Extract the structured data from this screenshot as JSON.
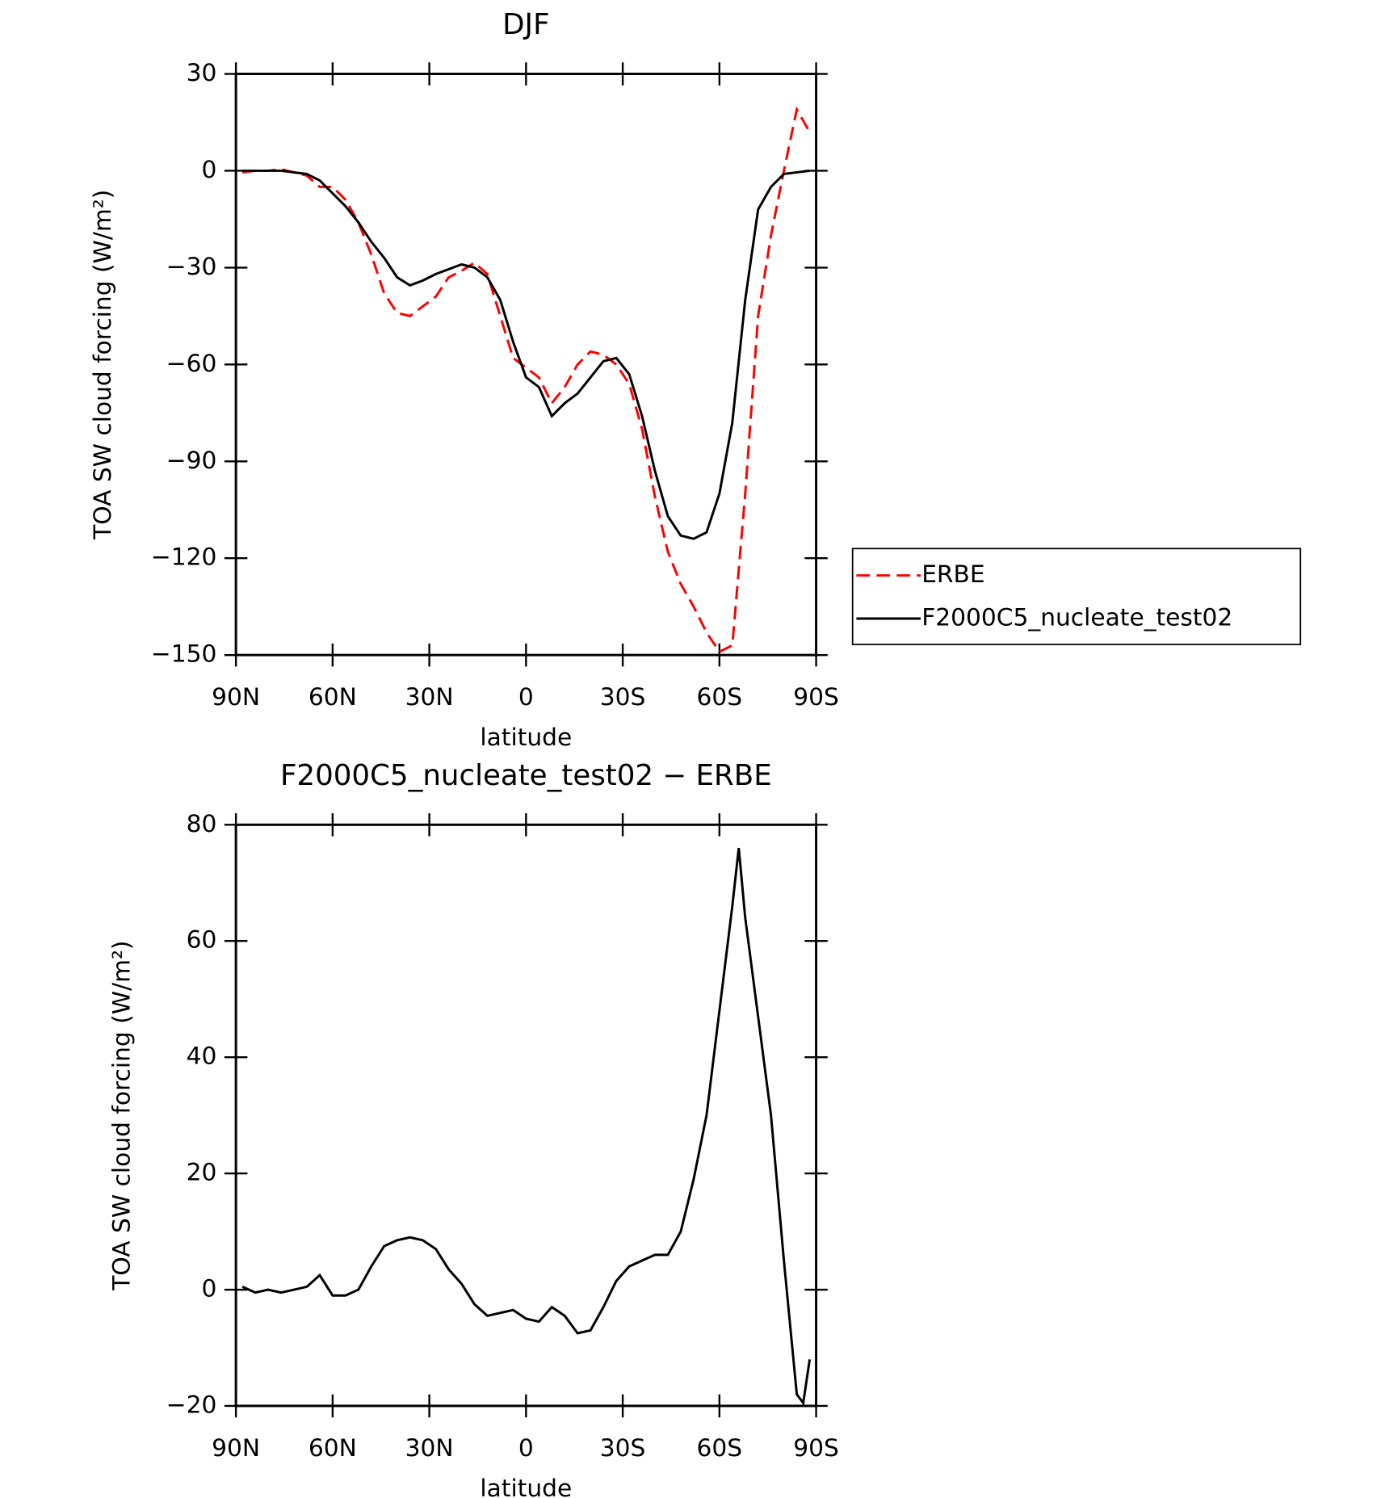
{
  "chart_data": [
    {
      "type": "line",
      "title": "DJF",
      "x_label": "latitude",
      "y_label": "TOA SW cloud forcing (W/m²)",
      "x": [
        88,
        84,
        80,
        76,
        72,
        68,
        64,
        60,
        56,
        52,
        48,
        44,
        40,
        36,
        32,
        28,
        24,
        20,
        16,
        12,
        8,
        4,
        0,
        -4,
        -8,
        -12,
        -16,
        -20,
        -24,
        -28,
        -32,
        -36,
        -40,
        -44,
        -48,
        -52,
        -56,
        -60,
        -64,
        -68,
        -72,
        -76,
        -80,
        -84,
        -88
      ],
      "series": [
        {
          "name": "ERBE",
          "color": "#ff0000",
          "dashed": true,
          "values": [
            -0.5,
            0,
            0,
            0.5,
            -0.5,
            -1.5,
            -5,
            -5,
            -9,
            -16,
            -26,
            -38,
            -44,
            -45,
            -42,
            -39,
            -33,
            -31,
            -28.5,
            -32,
            -45,
            -58,
            -61,
            -64,
            -72,
            -67,
            -60,
            -56,
            -57,
            -60,
            -66,
            -80,
            -101,
            -118,
            -128,
            -135,
            -143,
            -149,
            -147,
            -100,
            -45,
            -20,
            0,
            19,
            12
          ]
        },
        {
          "name": "F2000C5_nucleate_test02",
          "color": "#000000",
          "dashed": false,
          "values": [
            0,
            0,
            0,
            0,
            -0.5,
            -1,
            -3,
            -7,
            -11,
            -16,
            -22,
            -27,
            -33,
            -35.5,
            -34,
            -32,
            -30.5,
            -29,
            -30,
            -33,
            -40,
            -53,
            -64,
            -67,
            -76,
            -72,
            -69,
            -64,
            -59,
            -58,
            -63,
            -76,
            -93,
            -107,
            -113,
            -114,
            -112,
            -100,
            -78,
            -40,
            -12,
            -5,
            -1,
            -0.5,
            0
          ]
        }
      ],
      "xlim": [
        90,
        -90
      ],
      "xticks": [
        {
          "value": 90,
          "label": "90N"
        },
        {
          "value": 60,
          "label": "60N"
        },
        {
          "value": 30,
          "label": "30N"
        },
        0,
        {
          "value": -30,
          "label": "30S"
        },
        {
          "value": -60,
          "label": "60S"
        },
        {
          "value": -90,
          "label": "90S"
        }
      ],
      "ylim": [
        -150,
        30
      ],
      "yticks": [
        {
          "value": -150,
          "label": "−150"
        },
        {
          "value": -120,
          "label": "−120"
        },
        {
          "value": -90,
          "label": "−90"
        },
        {
          "value": -60,
          "label": "−60"
        },
        {
          "value": -30,
          "label": "−30"
        },
        0,
        30
      ],
      "legend": "right"
    },
    {
      "type": "line",
      "title": "F2000C5_nucleate_test02 − ERBE",
      "x_label": "latitude",
      "y_label": "TOA SW cloud forcing (W/m²)",
      "x": [
        88,
        84,
        80,
        76,
        72,
        68,
        64,
        60,
        56,
        52,
        48,
        44,
        40,
        36,
        32,
        28,
        24,
        20,
        16,
        12,
        8,
        4,
        0,
        -4,
        -8,
        -12,
        -16,
        -20,
        -24,
        -28,
        -32,
        -36,
        -40,
        -44,
        -48,
        -52,
        -56,
        -60,
        -64,
        -66,
        -68,
        -72,
        -76,
        -80,
        -84,
        -86,
        -88
      ],
      "values": [
        0.5,
        -0.5,
        0,
        -0.5,
        0,
        0.5,
        2.5,
        -1,
        -1,
        0,
        4,
        7.5,
        8.5,
        9,
        8.5,
        7,
        3.5,
        1,
        -2.5,
        -4.5,
        -4,
        -3.5,
        -5,
        -5.5,
        -3,
        -4.5,
        -7.5,
        -7,
        -3,
        1.5,
        4,
        5,
        6,
        6,
        10,
        19,
        30,
        48,
        66,
        76,
        64,
        47,
        30,
        5,
        -18,
        -19.5,
        -12
      ],
      "color": "#000000",
      "xlim": [
        90,
        -90
      ],
      "xticks": [
        {
          "value": 90,
          "label": "90N"
        },
        {
          "value": 60,
          "label": "60N"
        },
        {
          "value": 30,
          "label": "30N"
        },
        0,
        {
          "value": -30,
          "label": "30S"
        },
        {
          "value": -60,
          "label": "60S"
        },
        {
          "value": -90,
          "label": "90S"
        }
      ],
      "ylim": [
        -20,
        80
      ],
      "yticks": [
        {
          "value": -20,
          "label": "−20"
        },
        0,
        20,
        40,
        60,
        80
      ]
    }
  ]
}
